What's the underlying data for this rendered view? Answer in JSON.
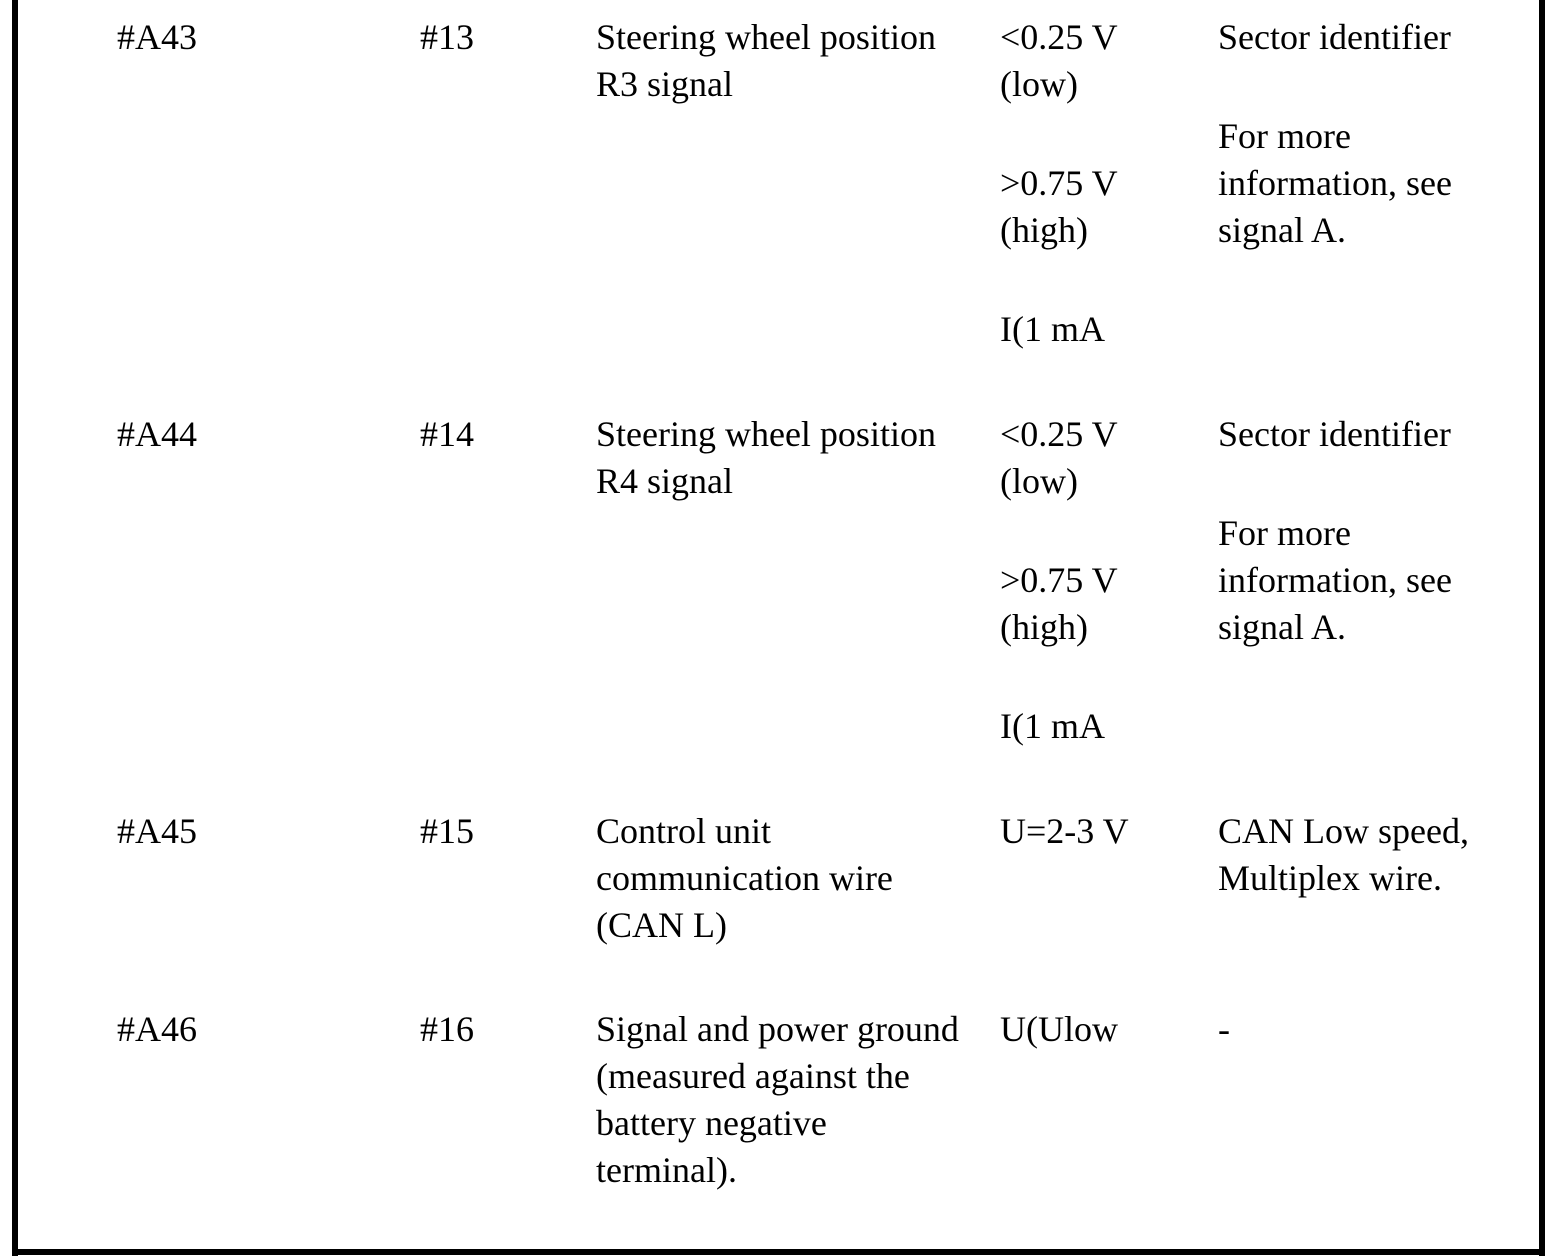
{
  "table": {
    "rows": [
      [
        [
          [
            "#A43"
          ]
        ],
        [
          [
            "#13"
          ]
        ],
        [
          [
            "Steering wheel position",
            "R3 signal"
          ]
        ],
        [
          [
            "<0.25 V",
            "(low)"
          ],
          [
            ">0.75 V",
            "(high)"
          ],
          [
            "I(1 mA"
          ]
        ],
        [
          [
            "Sector identifier"
          ],
          [
            "For more",
            "information, see",
            "signal A."
          ]
        ]
      ],
      [
        [
          [
            "#A44"
          ]
        ],
        [
          [
            "#14"
          ]
        ],
        [
          [
            "Steering wheel position",
            "R4 signal"
          ]
        ],
        [
          [
            "<0.25 V",
            "(low)"
          ],
          [
            ">0.75 V",
            "(high)"
          ],
          [
            "I(1 mA"
          ]
        ],
        [
          [
            "Sector identifier"
          ],
          [
            "For more",
            "information, see",
            "signal A."
          ]
        ]
      ],
      [
        [
          [
            "#A45"
          ]
        ],
        [
          [
            "#15"
          ]
        ],
        [
          [
            "Control unit",
            "communication wire",
            "(CAN L)"
          ]
        ],
        [
          [
            "U=2-3 V"
          ]
        ],
        [
          [
            "CAN Low speed,",
            "Multiplex wire."
          ]
        ]
      ],
      [
        [
          [
            "#A46"
          ]
        ],
        [
          [
            "#16"
          ]
        ],
        [
          [
            "Signal and power ground",
            "(measured against the",
            "battery negative",
            "terminal)."
          ]
        ],
        [
          [
            "U(Ulow"
          ]
        ],
        [
          [
            "-"
          ]
        ]
      ]
    ]
  }
}
